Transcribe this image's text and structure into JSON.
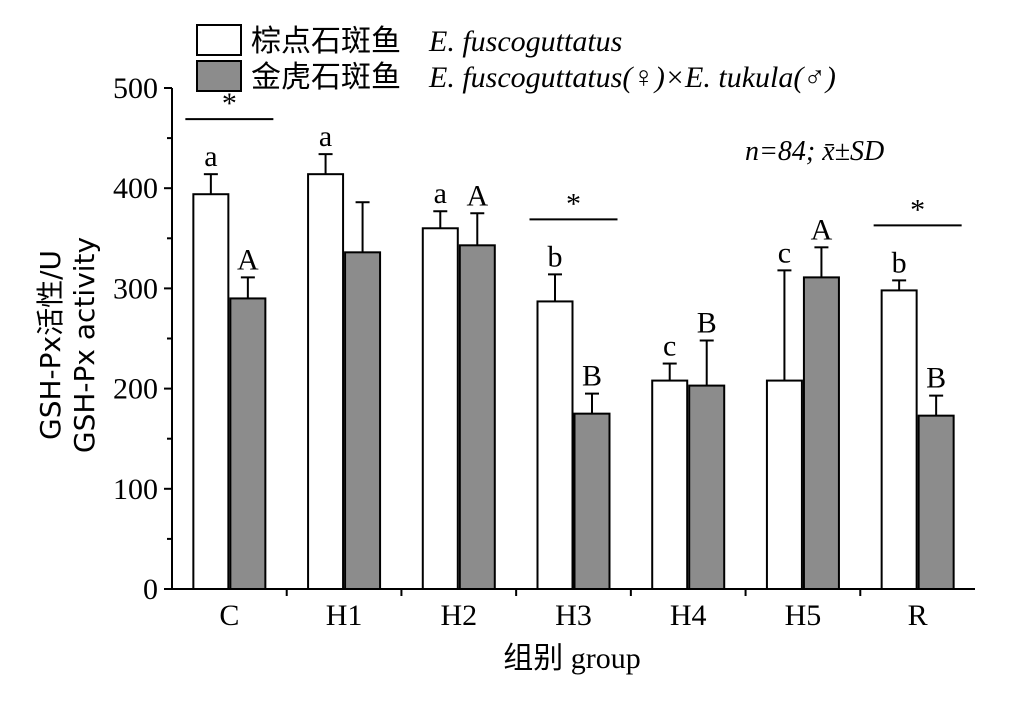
{
  "chart_data": {
    "type": "bar",
    "categories": [
      "C",
      "H1",
      "H2",
      "H3",
      "H4",
      "H5",
      "R"
    ],
    "series": [
      {
        "name_zh": "棕点石斑鱼",
        "name_latin": "E. fuscoguttatus",
        "color": "#ffffff",
        "values": [
          394,
          414,
          360,
          287,
          208,
          208,
          298
        ],
        "errors": [
          20,
          20,
          17,
          27,
          17,
          110,
          10
        ],
        "letters": [
          "a",
          "a",
          "a",
          "b",
          "c",
          "c",
          "b"
        ]
      },
      {
        "name_zh": "金虎石斑鱼",
        "name_latin": "E. fuscoguttatus(♀)×E. tukula(♂)",
        "color": "#8c8c8c",
        "values": [
          290,
          336,
          343,
          175,
          203,
          311,
          173
        ],
        "errors": [
          21,
          50,
          32,
          20,
          45,
          30,
          20
        ],
        "letters": [
          "A",
          "",
          "A",
          "B",
          "B",
          "A",
          "B"
        ]
      }
    ],
    "significance": [
      "*",
      "",
      "",
      "*",
      "",
      "",
      "*"
    ],
    "ylabel_line1": "GSH-Px活性/U",
    "ylabel_line2": "GSH-Px activity",
    "xlabel": "组别 group",
    "ylim": [
      0,
      500
    ],
    "yticks": [
      0,
      100,
      200,
      300,
      400,
      500
    ],
    "annotation": "n=84; x̄±SD",
    "legend_position": "top-left",
    "grid": false
  }
}
